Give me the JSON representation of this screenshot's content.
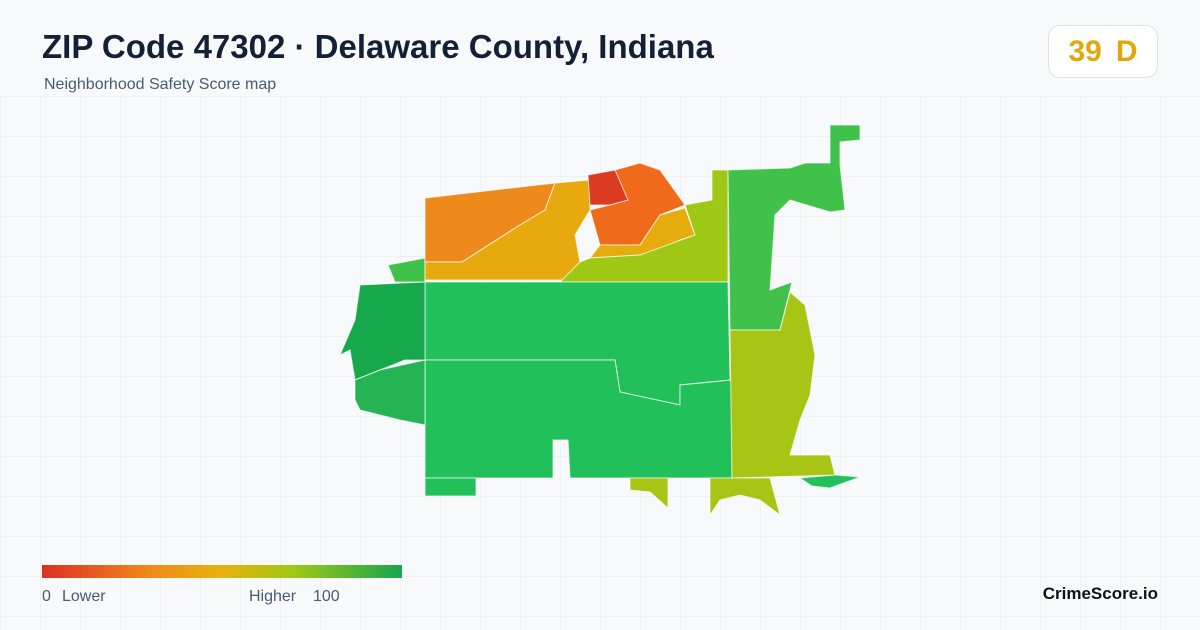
{
  "header": {
    "title": "ZIP Code 47302 · Delaware County, Indiana",
    "subtitle": "Neighborhood Safety Score map"
  },
  "score": {
    "value": "39",
    "grade": "D"
  },
  "legend": {
    "min": "0",
    "min_label": "Lower",
    "max_label": "Higher",
    "max": "100"
  },
  "brand": "CrimeScore.io"
}
